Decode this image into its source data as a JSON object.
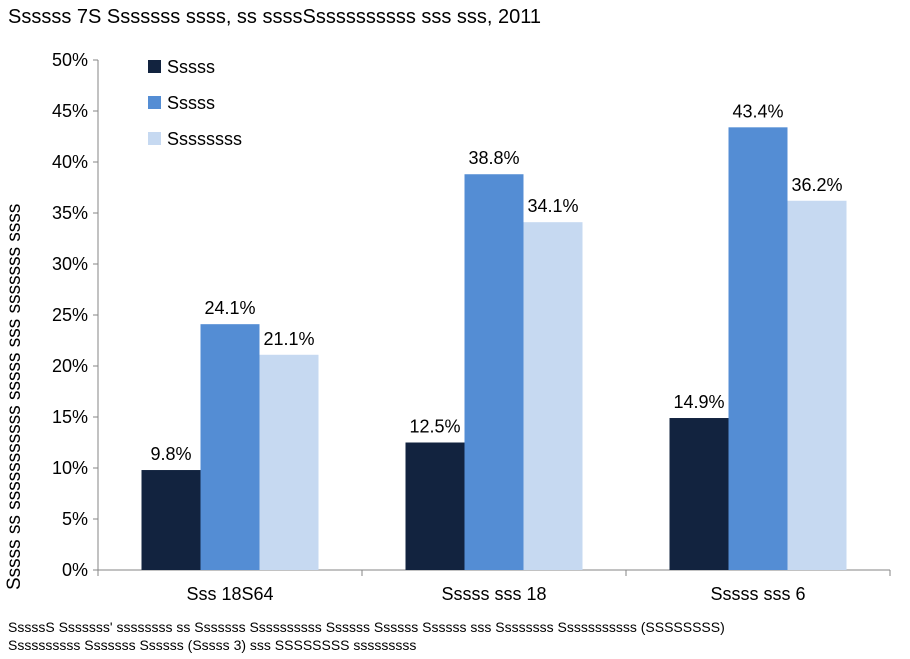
{
  "title": "Ssssss 7S  Sssssss ssss, ss ssssSssssssssss sss sss, 2011",
  "footnote_lines": [
    "SssssS Sssssss' ssssssss ss Sssssss Ssssssssss Ssssss Ssssss Ssssss sss Ssssssss Sssssssssss (SSSSSSSS)",
    "Ssssssssss Sssssss Ssssss (Sssss 3) sss SSSSSSSS sssssssss"
  ],
  "colors": {
    "series1": "#12233f",
    "series2": "#548dd4",
    "series3": "#c6d9f1"
  },
  "chart_data": {
    "type": "bar",
    "title": "Ssssss 7S  Sssssss ssss, ss ssssSssssssssss sss sss, 2011",
    "ylabel": "Sssss ss sssssssssss sssss sss sssssss ssss",
    "xlabel": "",
    "ylim": [
      0,
      50
    ],
    "ytick_labels": [
      "0%",
      "5%",
      "10%",
      "15%",
      "20%",
      "25%",
      "30%",
      "35%",
      "40%",
      "45%",
      "50%"
    ],
    "categories": [
      "Sss 18S64",
      "Sssss sss 18",
      "Sssss sss 6"
    ],
    "series": [
      {
        "name": "Sssss",
        "values": [
          9.8,
          12.5,
          14.9
        ],
        "labels": [
          "9.8%",
          "12.5%",
          "14.9%"
        ]
      },
      {
        "name": "Sssss",
        "values": [
          24.1,
          38.8,
          43.4
        ],
        "labels": [
          "24.1%",
          "38.8%",
          "43.4%"
        ]
      },
      {
        "name": "Ssssssss",
        "values": [
          21.1,
          34.1,
          36.2
        ],
        "labels": [
          "21.1%",
          "34.1%",
          "36.2%"
        ]
      }
    ],
    "legend_position": "top-left",
    "grid": false
  }
}
